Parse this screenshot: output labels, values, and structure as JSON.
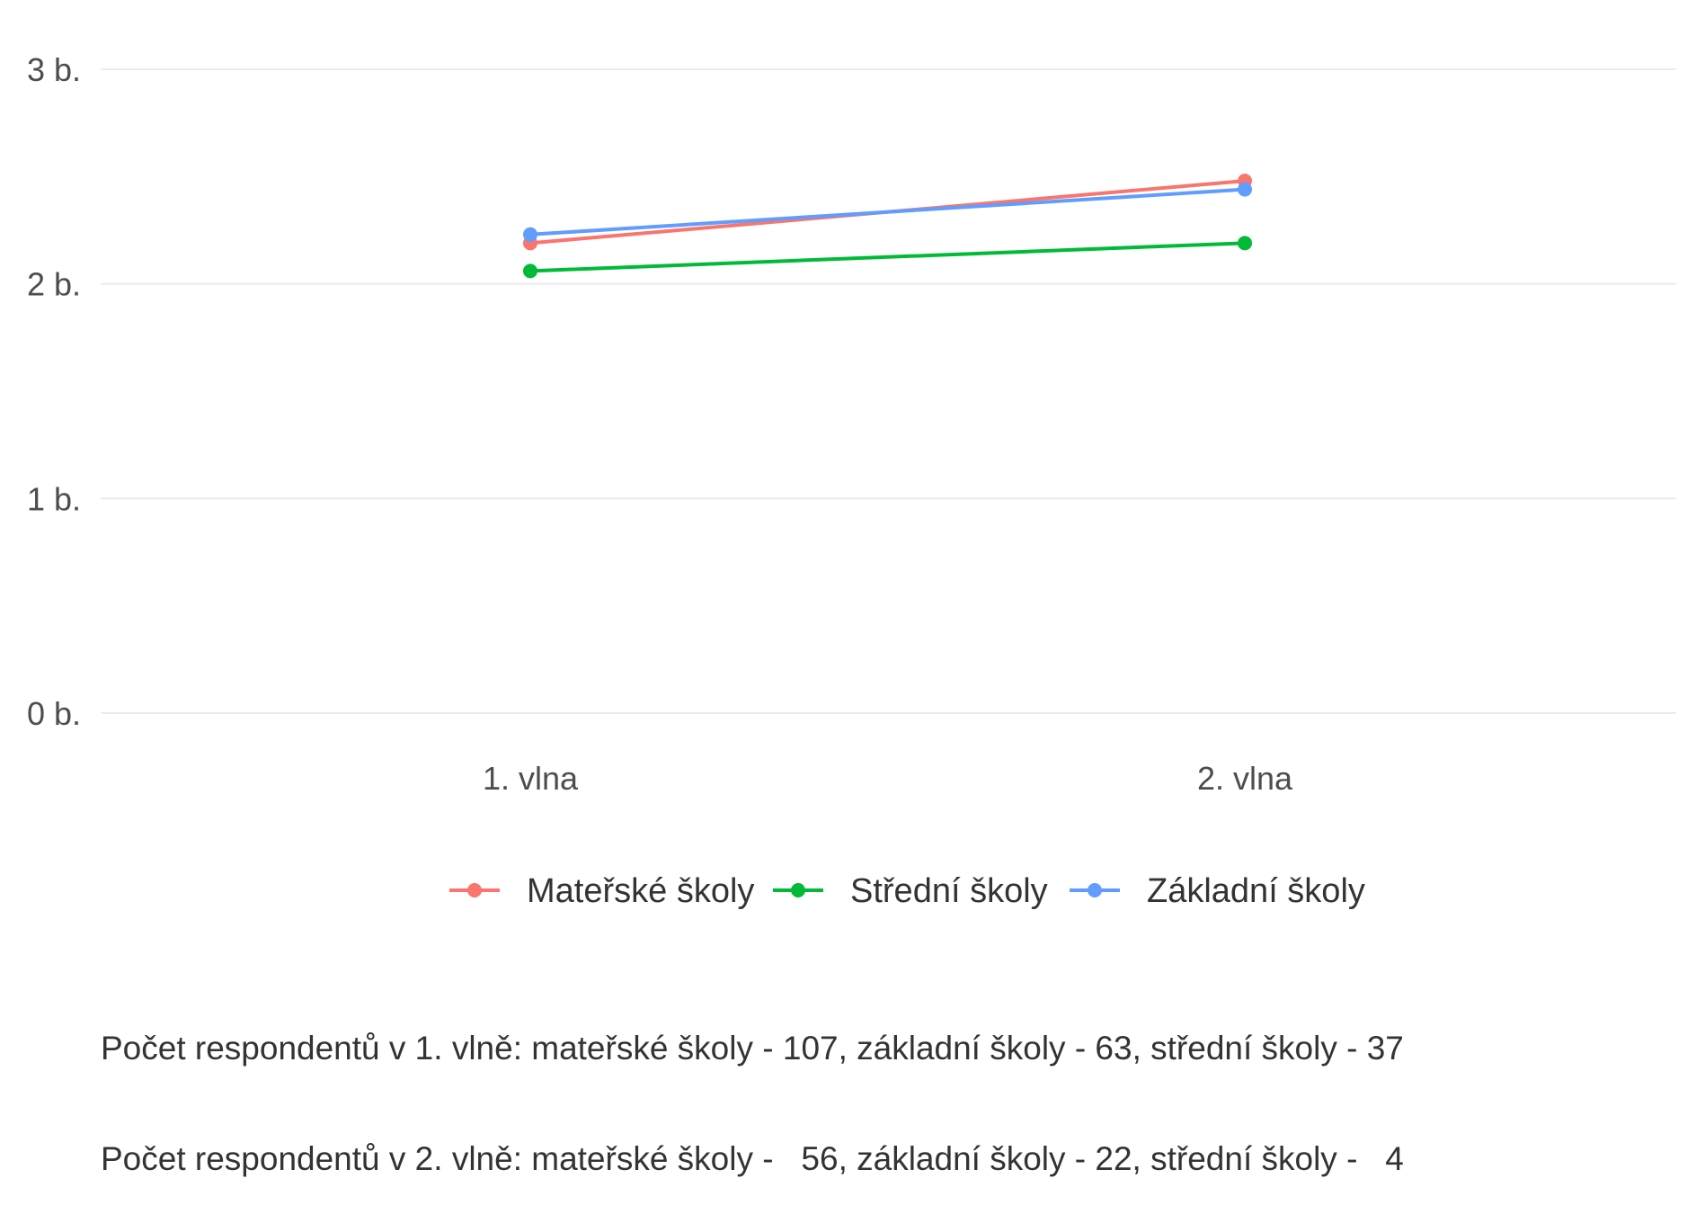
{
  "chart_data": {
    "type": "line",
    "categories": [
      "1. vlna",
      "2. vlna"
    ],
    "y_ticks": [
      {
        "value": 0,
        "label": "0 b."
      },
      {
        "value": 1,
        "label": "1 b."
      },
      {
        "value": 2,
        "label": "2 b."
      },
      {
        "value": 3,
        "label": "3 b."
      }
    ],
    "ylim": [
      0,
      3
    ],
    "grid": "horizontal",
    "legend_position": "bottom",
    "series": [
      {
        "name": "Mateřské školy",
        "color": "#F8766D",
        "values": [
          2.19,
          2.48
        ]
      },
      {
        "name": "Střední školy",
        "color": "#00BA38",
        "values": [
          2.06,
          2.19
        ]
      },
      {
        "name": "Základní školy",
        "color": "#619CFF",
        "values": [
          2.23,
          2.44
        ]
      }
    ],
    "caption_lines": [
      "Počet respondentů v 1. vlně: mateřské školy - 107, základní školy - 63, střední školy - 37",
      "Počet respondentů v 2. vlně: mateřské školy -   56, základní školy - 22, střední školy -   4"
    ]
  }
}
